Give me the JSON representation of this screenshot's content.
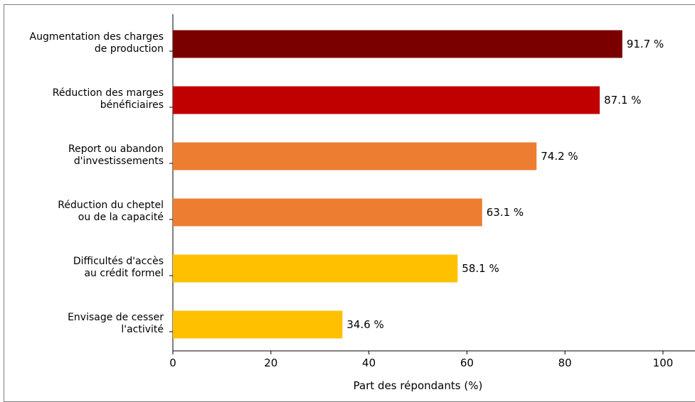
{
  "chart_data": {
    "type": "bar",
    "orientation": "horizontal",
    "title": "",
    "xlabel": "Part des répondants (%)",
    "ylabel": "",
    "xlim": [
      0,
      100
    ],
    "xticks": [
      0,
      20,
      40,
      60,
      80,
      100
    ],
    "value_suffix": " %",
    "grid": false,
    "bars": [
      {
        "label": [
          "Augmentation des charges",
          "de production"
        ],
        "value": 91.7,
        "value_label": "91.7 %",
        "color": "#7a0000"
      },
      {
        "label": [
          "Réduction des marges",
          "bénéficiaires"
        ],
        "value": 87.1,
        "value_label": "87.1 %",
        "color": "#c00000"
      },
      {
        "label": [
          "Report ou abandon",
          "d'investissements"
        ],
        "value": 74.2,
        "value_label": "74.2 %",
        "color": "#ed7d31"
      },
      {
        "label": [
          "Réduction du cheptel",
          "ou de la capacité"
        ],
        "value": 63.1,
        "value_label": "63.1 %",
        "color": "#ed7d31"
      },
      {
        "label": [
          "Difficultés d'accès",
          "au crédit formel"
        ],
        "value": 58.1,
        "value_label": "58.1 %",
        "color": "#ffc000"
      },
      {
        "label": [
          "Envisage de cesser",
          "l'activité"
        ],
        "value": 34.6,
        "value_label": "34.6 %",
        "color": "#ffc000"
      }
    ]
  }
}
